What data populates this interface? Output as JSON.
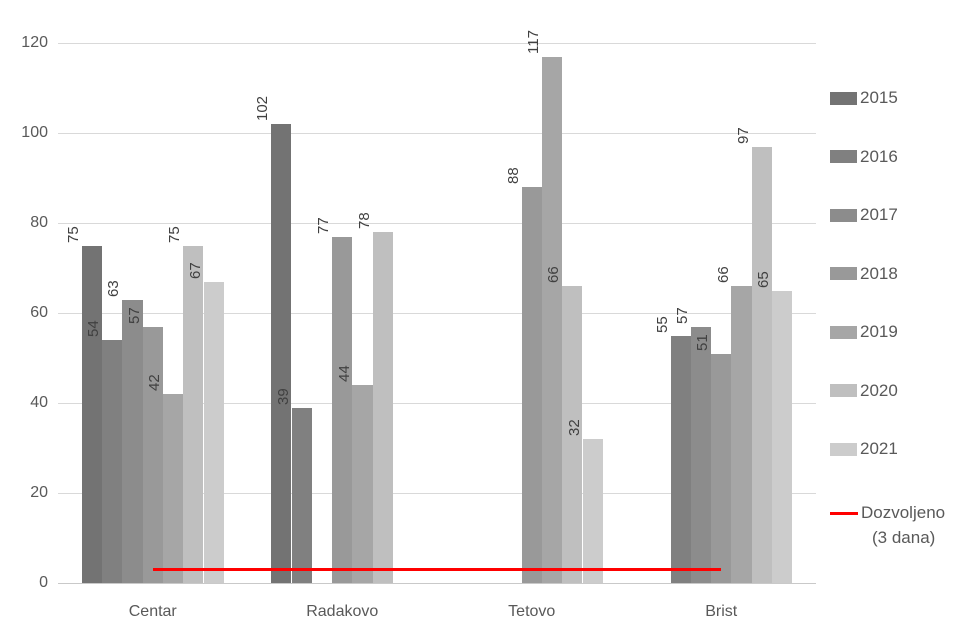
{
  "chart_data": {
    "type": "bar",
    "title": "",
    "xlabel": "",
    "ylabel": "",
    "categories": [
      "Centar",
      "Radakovo",
      "Tetovo",
      "Brist"
    ],
    "series": [
      {
        "name": "2015",
        "color": "#737373",
        "values": [
          75,
          102,
          null,
          null
        ]
      },
      {
        "name": "2016",
        "color": "#808080",
        "values": [
          54,
          39,
          null,
          55
        ]
      },
      {
        "name": "2017",
        "color": "#8C8C8C",
        "values": [
          63,
          null,
          null,
          57
        ]
      },
      {
        "name": "2018",
        "color": "#999999",
        "values": [
          57,
          77,
          88,
          51
        ]
      },
      {
        "name": "2019",
        "color": "#A6A6A6",
        "values": [
          42,
          44,
          117,
          66
        ]
      },
      {
        "name": "2020",
        "color": "#BFBFBF",
        "values": [
          75,
          78,
          66,
          97
        ]
      },
      {
        "name": "2021",
        "color": "#CCCCCC",
        "values": [
          67,
          null,
          32,
          65
        ]
      }
    ],
    "line_series": {
      "name": "Dozvoljeno (3 dana)",
      "legend_lines": [
        "Dozvoljeno",
        "(3 dana)"
      ],
      "color": "#FF0000",
      "value": 3,
      "span": "first-category-center-to-last-category-center"
    },
    "ylim": [
      0,
      120
    ],
    "yticks": [
      0,
      20,
      40,
      60,
      80,
      100,
      120
    ],
    "grid": true,
    "legend_position": "right",
    "data_labels_rotated": true
  },
  "colors": {
    "background": "#FFFFFF",
    "gridline": "#D9D9D9",
    "axis_line": "#C9C9C9",
    "tick_label_text": "#595959",
    "category_label_text": "#595959",
    "legend_text": "#595959",
    "data_label_text": "#404040"
  }
}
